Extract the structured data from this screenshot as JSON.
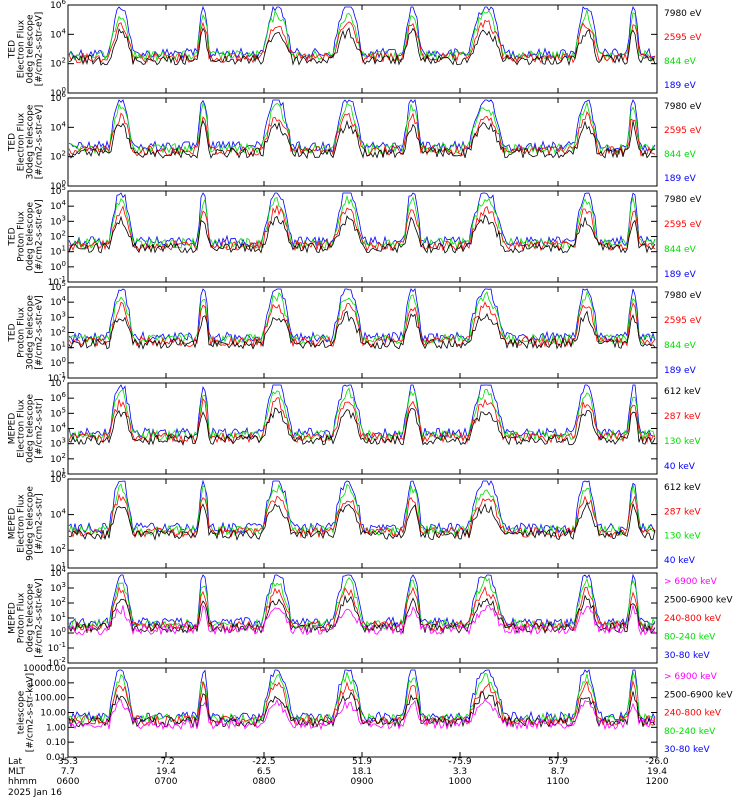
{
  "colors": {
    "black": "#000000",
    "red": "#ff0000",
    "green": "#00e000",
    "blue": "#0000ff",
    "magenta": "#ff00ff"
  },
  "chart_data": [
    {
      "type": "line",
      "panel": 1,
      "ylabel": [
        "TED",
        "Electron Flux",
        "0deg telescope",
        "[#/cm2-s-str-eV]"
      ],
      "ylim": [
        1,
        1000000
      ],
      "yscale": "log",
      "yticks": [
        {
          "v": 1,
          "e": "0"
        },
        {
          "v": 100,
          "e": "2"
        },
        {
          "v": 10000,
          "e": "4"
        },
        {
          "v": 1000000,
          "e": "6"
        }
      ],
      "series": [
        {
          "name": "7980 eV",
          "color": "black"
        },
        {
          "name": "2595 eV",
          "color": "red"
        },
        {
          "name": "844 eV",
          "color": "green"
        },
        {
          "name": "189 eV",
          "color": "blue"
        }
      ]
    },
    {
      "type": "line",
      "panel": 2,
      "ylabel": [
        "TED",
        "Electron Flux",
        "30deg telescope",
        "[#/cm2-s-str-eV]"
      ],
      "ylim": [
        1,
        1000000
      ],
      "yscale": "log",
      "yticks": [
        {
          "v": 1,
          "e": "0"
        },
        {
          "v": 100,
          "e": "2"
        },
        {
          "v": 10000,
          "e": "4"
        },
        {
          "v": 1000000,
          "e": "6"
        }
      ],
      "series": [
        {
          "name": "7980 eV",
          "color": "black"
        },
        {
          "name": "2595 eV",
          "color": "red"
        },
        {
          "name": "844 eV",
          "color": "green"
        },
        {
          "name": "189 eV",
          "color": "blue"
        }
      ]
    },
    {
      "type": "line",
      "panel": 3,
      "ylabel": [
        "TED",
        "Proton Flux",
        "0deg telescope",
        "[#/cm2-s-str-eV]"
      ],
      "ylim": [
        0.1,
        100000
      ],
      "yscale": "log",
      "yticks": [
        {
          "v": 0.1,
          "e": "-1"
        },
        {
          "v": 1,
          "e": "0"
        },
        {
          "v": 10,
          "e": "1"
        },
        {
          "v": 100,
          "e": "2"
        },
        {
          "v": 1000,
          "e": "3"
        },
        {
          "v": 10000,
          "e": "4"
        },
        {
          "v": 100000,
          "e": "5"
        }
      ],
      "series": [
        {
          "name": "7980 eV",
          "color": "black"
        },
        {
          "name": "2595 eV",
          "color": "red"
        },
        {
          "name": "844 eV",
          "color": "green"
        },
        {
          "name": "189 eV",
          "color": "blue"
        }
      ]
    },
    {
      "type": "line",
      "panel": 4,
      "ylabel": [
        "TED",
        "Proton Flux",
        "30deg telescope",
        "[#/cm2-s-str-eV]"
      ],
      "ylim": [
        0.1,
        100000
      ],
      "yscale": "log",
      "yticks": [
        {
          "v": 0.1,
          "e": "-1"
        },
        {
          "v": 1,
          "e": "0"
        },
        {
          "v": 10,
          "e": "1"
        },
        {
          "v": 100,
          "e": "2"
        },
        {
          "v": 1000,
          "e": "3"
        },
        {
          "v": 10000,
          "e": "4"
        },
        {
          "v": 100000,
          "e": "5"
        }
      ],
      "series": [
        {
          "name": "7980 eV",
          "color": "black"
        },
        {
          "name": "2595 eV",
          "color": "red"
        },
        {
          "name": "844 eV",
          "color": "green"
        },
        {
          "name": "189 eV",
          "color": "blue"
        }
      ]
    },
    {
      "type": "line",
      "panel": 5,
      "ylabel": [
        "MEPED",
        "Electron Flux",
        "0deg telescope",
        "[#/cm2-s-str]"
      ],
      "ylim": [
        10,
        10000000
      ],
      "yscale": "log",
      "yticks": [
        {
          "v": 10,
          "e": "1"
        },
        {
          "v": 100,
          "e": "2"
        },
        {
          "v": 1000,
          "e": "3"
        },
        {
          "v": 10000,
          "e": "4"
        },
        {
          "v": 100000,
          "e": "5"
        },
        {
          "v": 1000000,
          "e": "6"
        },
        {
          "v": 10000000,
          "e": "7"
        }
      ],
      "series": [
        {
          "name": "612 keV",
          "color": "black"
        },
        {
          "name": "287 keV",
          "color": "red"
        },
        {
          "name": "130 keV",
          "color": "green"
        },
        {
          "name": "40 keV",
          "color": "blue"
        }
      ]
    },
    {
      "type": "line",
      "panel": 6,
      "ylabel": [
        "MEPED",
        "Electron Flux",
        "90deg telescope",
        "[#/cm2-s-str]"
      ],
      "ylim": [
        10,
        1000000
      ],
      "yscale": "log",
      "yticks": [
        {
          "v": 10,
          "e": "1"
        },
        {
          "v": 100,
          "e": "2"
        },
        {
          "v": 10000,
          "e": "4"
        },
        {
          "v": 1000000,
          "e": "6"
        }
      ],
      "series": [
        {
          "name": "612 keV",
          "color": "black"
        },
        {
          "name": "287 keV",
          "color": "red"
        },
        {
          "name": "130 keV",
          "color": "green"
        },
        {
          "name": "40 keV",
          "color": "blue"
        }
      ]
    },
    {
      "type": "line",
      "panel": 7,
      "ylabel": [
        "MEPED",
        "Proton Flux",
        "0deg telescope",
        "[#/cm2-s-str-keV]"
      ],
      "ylim": [
        0.01,
        10000
      ],
      "yscale": "log",
      "yticks": [
        {
          "v": 0.01,
          "e": "-2"
        },
        {
          "v": 0.1,
          "e": "-1"
        },
        {
          "v": 1,
          "e": "0"
        },
        {
          "v": 10,
          "e": "1"
        },
        {
          "v": 100,
          "e": "2"
        },
        {
          "v": 1000,
          "e": "3"
        },
        {
          "v": 10000,
          "e": "4"
        }
      ],
      "series": [
        {
          "name": "> 6900 keV",
          "color": "magenta"
        },
        {
          "name": "2500-6900 keV",
          "color": "black"
        },
        {
          "name": "240-800 keV",
          "color": "red"
        },
        {
          "name": "80-240 keV",
          "color": "green"
        },
        {
          "name": "30-80 keV",
          "color": "blue"
        }
      ]
    },
    {
      "type": "line",
      "panel": 8,
      "ylabel": [
        "telescope",
        "[#/cm2-s-str-keV]"
      ],
      "ylim": [
        0.01,
        10000
      ],
      "yscale": "log",
      "yticks": [
        {
          "v": 0.01,
          "t": "0.01"
        },
        {
          "v": 0.1,
          "t": "0.10"
        },
        {
          "v": 1,
          "t": "1.00"
        },
        {
          "v": 10,
          "t": "10.00"
        },
        {
          "v": 100,
          "t": "100.00"
        },
        {
          "v": 1000,
          "t": "1000.00"
        },
        {
          "v": 10000,
          "t": "10000.00"
        }
      ],
      "series": [
        {
          "name": "> 6900 keV",
          "color": "magenta"
        },
        {
          "name": "2500-6900 keV",
          "color": "black"
        },
        {
          "name": "240-800 keV",
          "color": "red"
        },
        {
          "name": "80-240 keV",
          "color": "green"
        },
        {
          "name": "30-80 keV",
          "color": "blue"
        }
      ]
    }
  ],
  "xaxis": {
    "row_labels": [
      "Lat",
      "MLT",
      "hhmm"
    ],
    "date": "2025 Jan 16",
    "ticks": [
      {
        "t": 0.0,
        "lat": "35.3",
        "mlt": "7.7",
        "hhmm": "0600"
      },
      {
        "t": 0.2,
        "lat": "-7.2",
        "mlt": "19.4",
        "hhmm": "0700"
      },
      {
        "t": 0.4,
        "lat": "-22.5",
        "mlt": "6.5",
        "hhmm": "0800"
      },
      {
        "t": 0.6,
        "lat": "51.9",
        "mlt": "18.1",
        "hhmm": "0900"
      },
      {
        "t": 0.8,
        "lat": "-75.9",
        "mlt": "3.3",
        "hhmm": "1000"
      },
      {
        "t": 1.0,
        "lat": "57.9",
        "mlt": "8.7",
        "hhmm": "1100"
      },
      {
        "t": 1.2,
        "lat": "-26.0",
        "mlt": "19.4",
        "hhmm": "1200"
      }
    ]
  }
}
